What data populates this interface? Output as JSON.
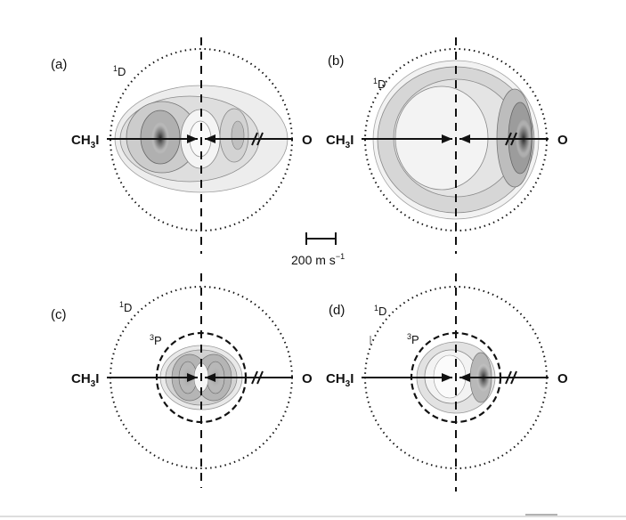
{
  "panels": [
    {
      "id": "a",
      "letter": "(a)",
      "outer_state": "1D",
      "inner_state": "",
      "left_label": "CH3I",
      "right_label": "O",
      "hot_side": "left"
    },
    {
      "id": "b",
      "letter": "(b)",
      "outer_state": "1D",
      "inner_state": "",
      "left_label": "CH3I",
      "right_label": "O",
      "hot_side": "right"
    },
    {
      "id": "c",
      "letter": "(c)",
      "outer_state": "1D",
      "inner_state": "3P",
      "left_label": "CH3I",
      "right_label": "O",
      "hot_side": "both"
    },
    {
      "id": "d",
      "letter": "(d)",
      "outer_state": "1D",
      "inner_state": "3P",
      "left_label": "CH3I",
      "right_label": "O",
      "hot_side": "right"
    }
  ],
  "scale_bar": {
    "label": "200 m s",
    "exponent": "−1"
  },
  "colors": {
    "ink": "#111111",
    "contour_fill_light": "#ececec",
    "contour_fill_dark": "#3a3a3a"
  }
}
